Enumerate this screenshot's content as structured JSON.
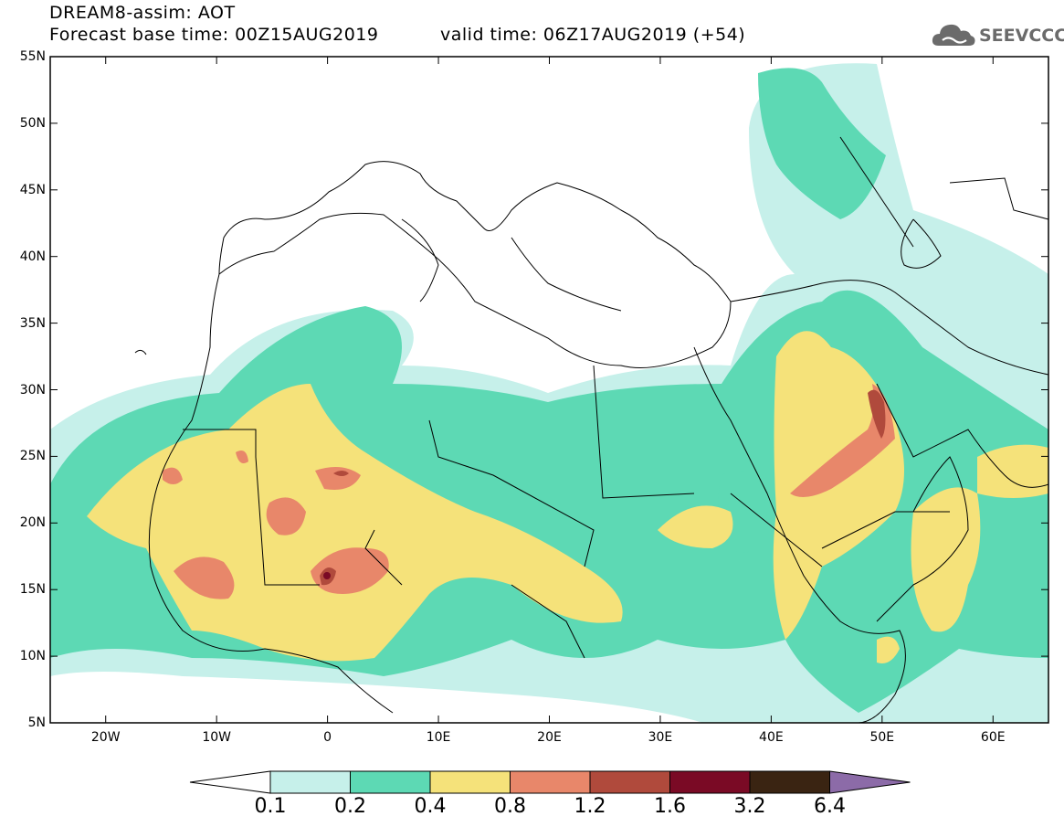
{
  "header": {
    "line1": "DREAM8-assim: AOT",
    "line2": "Forecast base time: 00Z15AUG2019",
    "valid": "valid time: 06Z17AUG2019 (+54)"
  },
  "logo": {
    "text": "SEEVCCC",
    "icon": "cloud-icon",
    "color": "#6b6b6b"
  },
  "map": {
    "lat_labels": [
      "55N",
      "50N",
      "45N",
      "40N",
      "35N",
      "30N",
      "25N",
      "20N",
      "15N",
      "10N",
      "5N"
    ],
    "lon_labels": [
      "20W",
      "10W",
      "0",
      "10E",
      "20E",
      "30E",
      "40E",
      "50E",
      "60E"
    ],
    "extent": {
      "lon_min": -25,
      "lon_max": 65,
      "lat_min": 5,
      "lat_max": 55
    }
  },
  "colorbar": {
    "levels": [
      "0.1",
      "0.2",
      "0.4",
      "0.8",
      "1.2",
      "1.6",
      "3.2",
      "6.4"
    ],
    "colors": [
      "#c6f0ea",
      "#5dd9b4",
      "#f5e27a",
      "#e8876a",
      "#b04a3c",
      "#7a0a25",
      "#3a2412",
      "#8c6ba8"
    ]
  }
}
